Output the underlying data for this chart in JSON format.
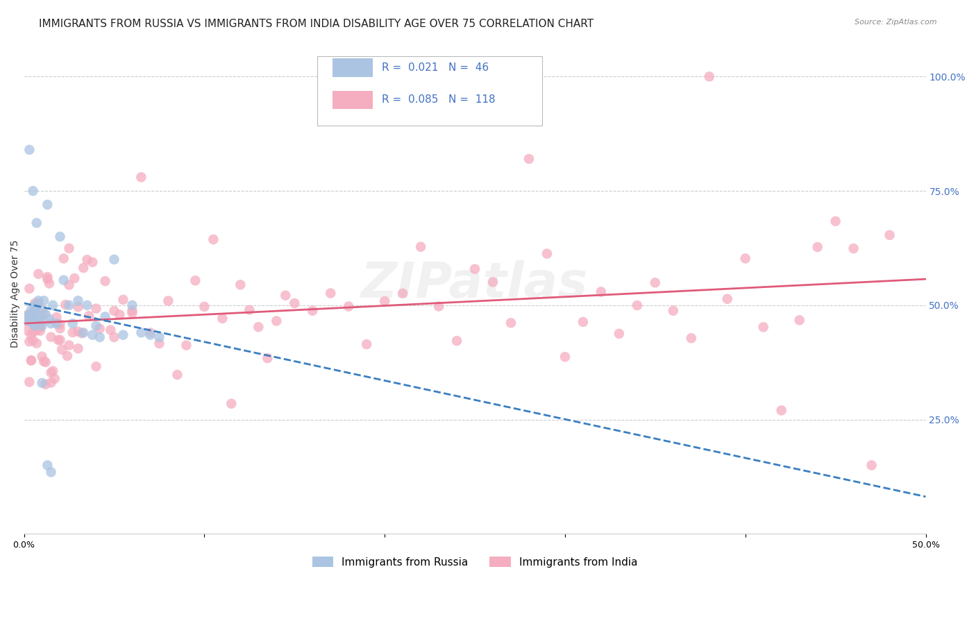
{
  "title": "IMMIGRANTS FROM RUSSIA VS IMMIGRANTS FROM INDIA DISABILITY AGE OVER 75 CORRELATION CHART",
  "source": "Source: ZipAtlas.com",
  "ylabel": "Disability Age Over 75",
  "xlim": [
    0.0,
    0.5
  ],
  "ylim": [
    0.0,
    1.05
  ],
  "russia_R": "0.021",
  "russia_N": "46",
  "india_R": "0.085",
  "india_N": "118",
  "russia_color": "#aac4e2",
  "india_color": "#f5adc0",
  "russia_line_color": "#3a7fc1",
  "india_line_color": "#e05a7a",
  "watermark": "ZIPatlas",
  "legend_russia_label": "Immigrants from Russia",
  "legend_india_label": "Immigrants from India",
  "title_fontsize": 11,
  "axis_label_fontsize": 10,
  "tick_fontsize": 9,
  "background_color": "#ffffff",
  "grid_color": "#cccccc"
}
